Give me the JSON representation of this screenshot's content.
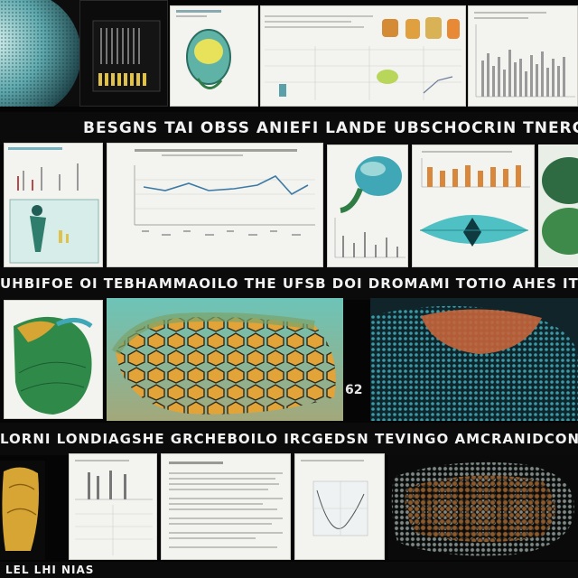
{
  "banners": {
    "row1": "BESGNS TAI OBSS ANIEFI LANDE UBSCHOCRIN TNERGINNUME",
    "row2": "UHBIFOE OI TEBHAMMAOILO THE UFSB DOI    DROMAMI TOTIO AHES ITTOHE",
    "row3": "LORNI    LONDIAGSHE GRCHEBOILO IRCGEDSN TEVINGO AMCRANIDCONTES",
    "row4": "LEL LHI NIAS",
    "side_number": "62"
  },
  "icons": {
    "leaf": "leaf-specimen-icon",
    "jar": "specimen-jar-icon",
    "sculpture": "gold-sculpture-icon"
  },
  "colors": {
    "background": "#050505",
    "teal": "#3fa7b5",
    "orange": "#d8873b",
    "green": "#2f7d45",
    "gold": "#d7a533"
  }
}
